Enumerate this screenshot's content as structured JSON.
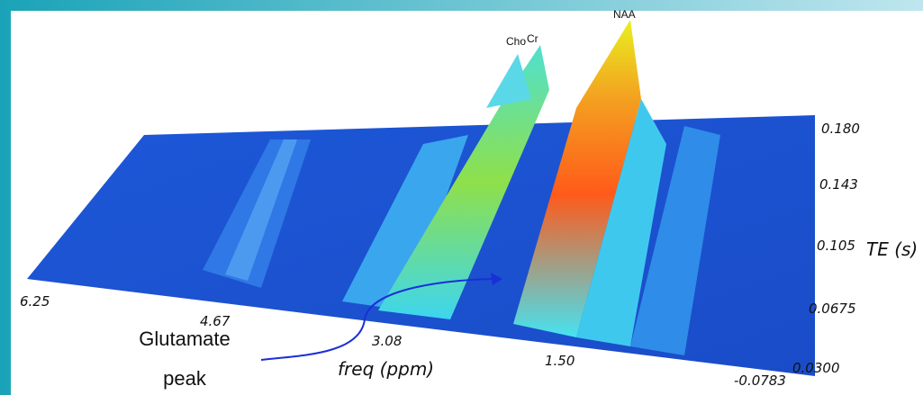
{
  "peaks": [
    "Cho",
    "Cr",
    "NAA"
  ],
  "x_axis": {
    "label": "freq (ppm)",
    "ticks": [
      "6.25",
      "4.67",
      "3.08",
      "1.50",
      "-0.0783"
    ]
  },
  "y_axis": {
    "label": "TE (s)",
    "ticks": [
      "0.180",
      "0.143",
      "0.105",
      "0.0675",
      "0.0300"
    ]
  },
  "annotation": {
    "lines": [
      "Glutamate",
      "peak"
    ]
  }
}
